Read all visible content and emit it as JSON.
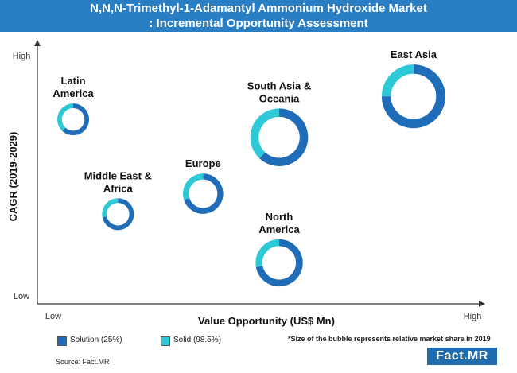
{
  "title": {
    "line1": "N,N,N-Trimethyl-1-Adamantyl Ammonium Hydroxide Market",
    "line2": ": Incremental Opportunity Assessment"
  },
  "colors": {
    "title_bg": "#2a7fc4",
    "solution": "#1f6cb8",
    "solid": "#2ec9d6",
    "logo_bg": "#1f6cae"
  },
  "chart_data": {
    "type": "bubble-donut",
    "xlabel": "Value Opportunity (US$ Mn)",
    "ylabel": "CAGR (2019-2029)",
    "x_ticks": [
      "Low",
      "High"
    ],
    "y_ticks": [
      "High",
      "Low"
    ],
    "x_scale": "qualitative 0-10 (Low to High)",
    "y_scale": "qualitative 0-10 (Low to High)",
    "series": [
      {
        "name": "Solution (25%)",
        "color": "#1f6cb8"
      },
      {
        "name": "Solid (98.5%)",
        "color": "#2ec9d6"
      }
    ],
    "bubbles": [
      {
        "label": [
          "Latin",
          "America"
        ],
        "x": 0.8,
        "y": 7.2,
        "size": 1.0,
        "solution_share": 0.62
      },
      {
        "label": [
          "Middle East &",
          "Africa"
        ],
        "x": 1.8,
        "y": 3.5,
        "size": 1.0,
        "solution_share": 0.72
      },
      {
        "label": [
          "Europe"
        ],
        "x": 3.7,
        "y": 4.3,
        "size": 1.6,
        "solution_share": 0.7
      },
      {
        "label": [
          "South Asia &",
          "Oceania"
        ],
        "x": 5.4,
        "y": 6.5,
        "size": 3.3,
        "solution_share": 0.62
      },
      {
        "label": [
          "North",
          "America"
        ],
        "x": 5.4,
        "y": 1.6,
        "size": 2.2,
        "solution_share": 0.72
      },
      {
        "label": [
          "East Asia"
        ],
        "x": 8.4,
        "y": 8.1,
        "size": 4.0,
        "solution_share": 0.75
      }
    ],
    "note": "*Size of the bubble represents relative market share in 2019"
  },
  "legend": {
    "solution_label": "Solution (25%)",
    "solid_label": "Solid (98.5%)"
  },
  "footnote": "*Size of the bubble represents relative market share in 2019",
  "source": "Source: Fact.MR",
  "logo": "Fact.MR"
}
